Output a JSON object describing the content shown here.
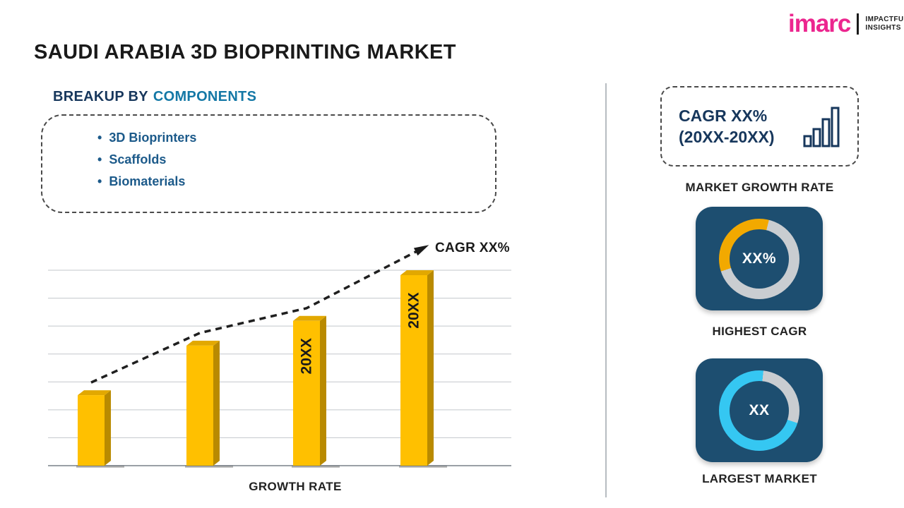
{
  "title": "SAUDI ARABIA 3D BIOPRINTING MARKET",
  "logo": {
    "brand": "imarc",
    "tagline1": "IMPACTFUL",
    "tagline2": "INSIGHTS"
  },
  "breakup": {
    "heading_prefix": "BREAKUP BY",
    "heading_highlight": "COMPONENTS",
    "items": [
      "3D Bioprinters",
      "Scaffolds",
      "Biomaterials"
    ]
  },
  "sidebar": {
    "cagr_box": {
      "line1": "CAGR XX%",
      "line2": "(20XX-20XX)"
    },
    "market_growth_label": "MARKET GROWTH RATE",
    "highest_cagr": {
      "value": "XX%",
      "label": "HIGHEST CAGR"
    },
    "largest_market": {
      "value": "XX",
      "label": "LARGEST MARKET"
    }
  },
  "chart_data": {
    "type": "bar",
    "title": "",
    "xlabel": "GROWTH RATE",
    "ylabel": "",
    "categories": [
      "",
      "",
      "20XX",
      "20XX"
    ],
    "values": [
      37,
      63,
      76,
      100
    ],
    "bar_labels": [
      "",
      "",
      "20XX",
      "20XX"
    ],
    "annotation": "CAGR XX%",
    "trend": "increasing",
    "grid": true,
    "legend": false,
    "ylim": [
      0,
      110
    ]
  },
  "colors": {
    "bar": "#FFC000",
    "bar_side": "#B98A00",
    "bar_top": "#E2A800",
    "heading_navy": "#17375C",
    "teal": "#1478A6",
    "item_blue": "#1C5A8A",
    "panel": "#1D4E70",
    "donut_yellow": "#F2A900",
    "donut_cyan": "#35C7F2",
    "donut_gray": "#C9CDD1",
    "pink": "#EC268F",
    "text_dark": "#1A1A1A"
  }
}
